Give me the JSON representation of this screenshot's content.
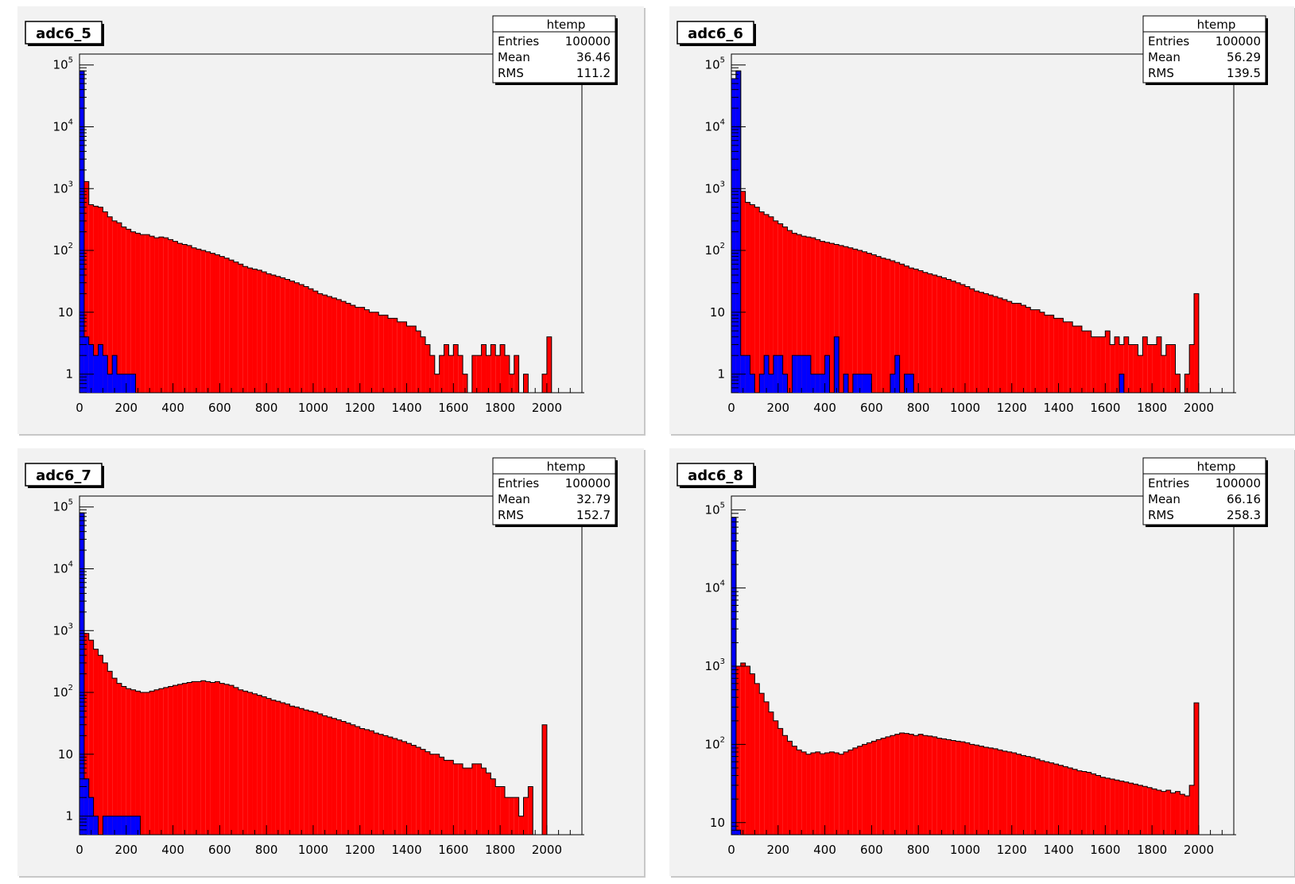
{
  "chart_data": [
    {
      "type": "bar",
      "title": "adc6_5",
      "stats": {
        "name": "htemp",
        "entries_label": "Entries",
        "entries": "100000",
        "mean_label": "Mean",
        "mean": "36.46",
        "rms_label": "RMS",
        "rms": "111.2"
      },
      "yscale": "log",
      "xlim": [
        0,
        2150
      ],
      "ylim": [
        0.5,
        150000
      ],
      "xticks": [
        0,
        200,
        400,
        600,
        800,
        1000,
        1200,
        1400,
        1600,
        1800,
        2000
      ],
      "xtick_labels": [
        "0",
        "200",
        "400",
        "600",
        "800",
        "1000",
        "1200",
        "1400",
        "1600",
        "1800",
        "2000"
      ],
      "yticks": [
        1,
        10,
        100,
        1000,
        10000,
        100000
      ],
      "ytick_labels": [
        {
          "base": "1",
          "exp": ""
        },
        {
          "base": "10",
          "exp": ""
        },
        {
          "base": "10",
          "exp": "2"
        },
        {
          "base": "10",
          "exp": "3"
        },
        {
          "base": "10",
          "exp": "4"
        },
        {
          "base": "10",
          "exp": "5"
        }
      ],
      "bin_width": 20,
      "series": [
        {
          "color": "#ff0000",
          "values": [
            80000,
            1300,
            550,
            520,
            500,
            420,
            350,
            300,
            280,
            240,
            220,
            200,
            190,
            180,
            180,
            170,
            160,
            165,
            160,
            150,
            140,
            130,
            125,
            120,
            110,
            105,
            100,
            95,
            90,
            85,
            80,
            75,
            70,
            65,
            60,
            55,
            52,
            50,
            48,
            45,
            42,
            40,
            38,
            36,
            34,
            32,
            30,
            28,
            26,
            24,
            22,
            20,
            19,
            18,
            17,
            16,
            15,
            14,
            13,
            12,
            12,
            11,
            10,
            10,
            9,
            9,
            8,
            8,
            7,
            7,
            6,
            6,
            5,
            4,
            3,
            2,
            1,
            2,
            3,
            2,
            3,
            2,
            1,
            0,
            2,
            2,
            3,
            2,
            3,
            2,
            3,
            2,
            1,
            2,
            0,
            1,
            0,
            0,
            0,
            1,
            4,
            0,
            0,
            0,
            0,
            0,
            0,
            0
          ]
        },
        {
          "color": "#0000ff",
          "values": [
            80000,
            4,
            3,
            2,
            3,
            2,
            1,
            2,
            1,
            1,
            1,
            1,
            0,
            0,
            0,
            0,
            0,
            0,
            0,
            0,
            0,
            0,
            0,
            0,
            0,
            0,
            0,
            0,
            0,
            0,
            0,
            0,
            0,
            0,
            0,
            0,
            0,
            0,
            0,
            0,
            0,
            0,
            0,
            0,
            0,
            0,
            0,
            0,
            0,
            0,
            0,
            0,
            0,
            0,
            0,
            0,
            0,
            0,
            0,
            0,
            0,
            0,
            0,
            0,
            0,
            0,
            0,
            0,
            0,
            0,
            0,
            0,
            0,
            0,
            0,
            0,
            0,
            0,
            0,
            0,
            0,
            0,
            0,
            0,
            0,
            0,
            0,
            0,
            0,
            0,
            0,
            0,
            0,
            0,
            0,
            0,
            0,
            0,
            0,
            0,
            0,
            0,
            0,
            0,
            0,
            0,
            0,
            0
          ]
        }
      ]
    },
    {
      "type": "bar",
      "title": "adc6_6",
      "stats": {
        "name": "htemp",
        "entries_label": "Entries",
        "entries": "100000",
        "mean_label": "Mean",
        "mean": "56.29",
        "rms_label": "RMS",
        "rms": "139.5"
      },
      "yscale": "log",
      "xlim": [
        0,
        2150
      ],
      "ylim": [
        0.5,
        150000
      ],
      "xticks": [
        0,
        200,
        400,
        600,
        800,
        1000,
        1200,
        1400,
        1600,
        1800,
        2000
      ],
      "xtick_labels": [
        "0",
        "200",
        "400",
        "600",
        "800",
        "1000",
        "1200",
        "1400",
        "1600",
        "1800",
        "2000"
      ],
      "yticks": [
        1,
        10,
        100,
        1000,
        10000,
        100000
      ],
      "ytick_labels": [
        {
          "base": "1",
          "exp": ""
        },
        {
          "base": "10",
          "exp": ""
        },
        {
          "base": "10",
          "exp": "2"
        },
        {
          "base": "10",
          "exp": "3"
        },
        {
          "base": "10",
          "exp": "4"
        },
        {
          "base": "10",
          "exp": "5"
        }
      ],
      "bin_width": 20,
      "series": [
        {
          "color": "#ff0000",
          "values": [
            60000,
            80000,
            900,
            600,
            550,
            500,
            420,
            380,
            350,
            300,
            270,
            240,
            210,
            190,
            180,
            170,
            165,
            160,
            150,
            140,
            135,
            130,
            125,
            120,
            115,
            110,
            105,
            100,
            95,
            90,
            85,
            80,
            75,
            72,
            68,
            64,
            60,
            56,
            52,
            50,
            47,
            44,
            42,
            40,
            38,
            36,
            34,
            32,
            30,
            28,
            26,
            24,
            22,
            21,
            20,
            19,
            18,
            17,
            16,
            15,
            14,
            14,
            13,
            12,
            11,
            11,
            10,
            9,
            9,
            8,
            8,
            7,
            7,
            6,
            6,
            5,
            5,
            4,
            4,
            4,
            5,
            3,
            4,
            3,
            4,
            3,
            3,
            2,
            4,
            3,
            3,
            4,
            2,
            3,
            3,
            1,
            0,
            1,
            3,
            20,
            0,
            0,
            0,
            0,
            0,
            0,
            0,
            0
          ]
        },
        {
          "color": "#0000ff",
          "values": [
            60000,
            80000,
            2,
            2,
            1,
            0,
            1,
            2,
            1,
            2,
            2,
            1,
            0,
            2,
            2,
            2,
            2,
            1,
            1,
            1,
            2,
            0,
            4,
            0,
            1,
            0,
            1,
            1,
            1,
            1,
            0,
            0,
            0,
            0,
            1,
            2,
            0,
            1,
            1,
            0,
            0,
            0,
            0,
            0,
            0,
            0,
            0,
            0,
            0,
            0,
            0,
            0,
            0,
            0,
            0,
            0,
            0,
            0,
            0,
            0,
            0,
            0,
            0,
            0,
            0,
            0,
            0,
            0,
            0,
            0,
            0,
            0,
            0,
            0,
            0,
            0,
            0,
            0,
            0,
            0,
            0,
            0,
            0,
            1,
            0,
            0,
            0,
            0,
            0,
            0,
            0,
            0,
            0,
            0,
            0,
            0,
            0,
            0,
            0,
            0,
            0,
            0,
            0,
            0,
            0,
            0,
            0,
            0
          ]
        }
      ]
    },
    {
      "type": "bar",
      "title": "adc6_7",
      "stats": {
        "name": "htemp",
        "entries_label": "Entries",
        "entries": "100000",
        "mean_label": "Mean",
        "mean": "32.79",
        "rms_label": "RMS",
        "rms": "152.7"
      },
      "yscale": "log",
      "xlim": [
        0,
        2150
      ],
      "ylim": [
        0.5,
        150000
      ],
      "xticks": [
        0,
        200,
        400,
        600,
        800,
        1000,
        1200,
        1400,
        1600,
        1800,
        2000
      ],
      "xtick_labels": [
        "0",
        "200",
        "400",
        "600",
        "800",
        "1000",
        "1200",
        "1400",
        "1600",
        "1800",
        "2000"
      ],
      "yticks": [
        1,
        10,
        100,
        1000,
        10000,
        100000
      ],
      "ytick_labels": [
        {
          "base": "1",
          "exp": ""
        },
        {
          "base": "10",
          "exp": ""
        },
        {
          "base": "10",
          "exp": "2"
        },
        {
          "base": "10",
          "exp": "3"
        },
        {
          "base": "10",
          "exp": "4"
        },
        {
          "base": "10",
          "exp": "5"
        }
      ],
      "bin_width": 20,
      "series": [
        {
          "color": "#ff0000",
          "values": [
            80000,
            900,
            700,
            500,
            400,
            300,
            220,
            170,
            140,
            125,
            115,
            110,
            105,
            100,
            100,
            105,
            110,
            115,
            120,
            125,
            130,
            135,
            140,
            145,
            150,
            150,
            155,
            150,
            145,
            150,
            140,
            135,
            130,
            120,
            110,
            105,
            100,
            95,
            90,
            85,
            80,
            75,
            72,
            68,
            65,
            60,
            58,
            55,
            52,
            50,
            48,
            45,
            42,
            40,
            38,
            36,
            34,
            32,
            30,
            28,
            26,
            25,
            24,
            22,
            21,
            20,
            19,
            18,
            17,
            16,
            15,
            14,
            13,
            12,
            11,
            10,
            10,
            9,
            8,
            8,
            7,
            7,
            6,
            6,
            7,
            7,
            6,
            5,
            4,
            3,
            3,
            2,
            2,
            2,
            1,
            2,
            3,
            0,
            0,
            30,
            0,
            0,
            0,
            0,
            0,
            0,
            0,
            0
          ]
        },
        {
          "color": "#0000ff",
          "values": [
            80000,
            4,
            2,
            1,
            0,
            1,
            1,
            1,
            1,
            1,
            1,
            1,
            1,
            0,
            0,
            0,
            0,
            0,
            0,
            0,
            0,
            0,
            0,
            0,
            0,
            0,
            0,
            0,
            0,
            0,
            0,
            0,
            0,
            0,
            0,
            0,
            0,
            0,
            0,
            0,
            0,
            0,
            0,
            0,
            0,
            0,
            0,
            0,
            0,
            0,
            0,
            0,
            0,
            0,
            0,
            0,
            0,
            0,
            0,
            0,
            0,
            0,
            0,
            0,
            0,
            0,
            0,
            0,
            0,
            0,
            0,
            0,
            0,
            0,
            0,
            0,
            0,
            0,
            0,
            0,
            0,
            0,
            0,
            0,
            0,
            0,
            0,
            0,
            0,
            0,
            0,
            0,
            0,
            0,
            0,
            0,
            0,
            0,
            0,
            0,
            0,
            0,
            0,
            0,
            0,
            0,
            0,
            0
          ]
        }
      ]
    },
    {
      "type": "bar",
      "title": "adc6_8",
      "stats": {
        "name": "htemp",
        "entries_label": "Entries",
        "entries": "100000",
        "mean_label": "Mean",
        "mean": "66.16",
        "rms_label": "RMS",
        "rms": "258.3"
      },
      "yscale": "log",
      "xlim": [
        0,
        2150
      ],
      "ylim": [
        7,
        150000
      ],
      "xticks": [
        0,
        200,
        400,
        600,
        800,
        1000,
        1200,
        1400,
        1600,
        1800,
        2000
      ],
      "xtick_labels": [
        "0",
        "200",
        "400",
        "600",
        "800",
        "1000",
        "1200",
        "1400",
        "1600",
        "1800",
        "2000"
      ],
      "yticks": [
        10,
        100,
        1000,
        10000,
        100000
      ],
      "ytick_labels": [
        {
          "base": "10",
          "exp": ""
        },
        {
          "base": "10",
          "exp": "2"
        },
        {
          "base": "10",
          "exp": "3"
        },
        {
          "base": "10",
          "exp": "4"
        },
        {
          "base": "10",
          "exp": "5"
        }
      ],
      "bin_width": 20,
      "series": [
        {
          "color": "#ff0000",
          "values": [
            80000,
            1000,
            1100,
            1000,
            800,
            600,
            450,
            350,
            260,
            200,
            160,
            130,
            110,
            95,
            85,
            80,
            75,
            78,
            80,
            76,
            78,
            80,
            78,
            75,
            80,
            85,
            90,
            95,
            100,
            105,
            110,
            115,
            120,
            125,
            130,
            135,
            140,
            138,
            135,
            130,
            135,
            130,
            128,
            125,
            120,
            118,
            115,
            112,
            110,
            108,
            105,
            100,
            98,
            95,
            92,
            90,
            88,
            85,
            82,
            80,
            78,
            75,
            72,
            70,
            68,
            65,
            62,
            60,
            58,
            56,
            54,
            52,
            50,
            48,
            46,
            45,
            44,
            42,
            40,
            38,
            37,
            36,
            35,
            34,
            33,
            32,
            31,
            30,
            29,
            28,
            27,
            26,
            25,
            26,
            24,
            25,
            23,
            22,
            30,
            340,
            0,
            0,
            0,
            0,
            0,
            0,
            0,
            0
          ]
        },
        {
          "color": "#0000ff",
          "values": [
            80000,
            8,
            0,
            0,
            0,
            0,
            0,
            0,
            0,
            0,
            0,
            0,
            0,
            0,
            0,
            0,
            0,
            0,
            0,
            0,
            0,
            0,
            0,
            0,
            0,
            0,
            0,
            0,
            0,
            0,
            0,
            0,
            0,
            0,
            0,
            0,
            0,
            0,
            0,
            0,
            0,
            0,
            0,
            0,
            0,
            0,
            0,
            0,
            0,
            0,
            0,
            0,
            0,
            0,
            0,
            0,
            0,
            0,
            0,
            0,
            0,
            0,
            0,
            0,
            0,
            0,
            0,
            0,
            0,
            0,
            0,
            0,
            0,
            0,
            0,
            0,
            0,
            0,
            0,
            0,
            0,
            0,
            0,
            0,
            0,
            0,
            0,
            0,
            0,
            0,
            0,
            0,
            0,
            0,
            0,
            0,
            0,
            0,
            0,
            0,
            0,
            0,
            0,
            0,
            0,
            0,
            0,
            0
          ]
        }
      ]
    }
  ]
}
